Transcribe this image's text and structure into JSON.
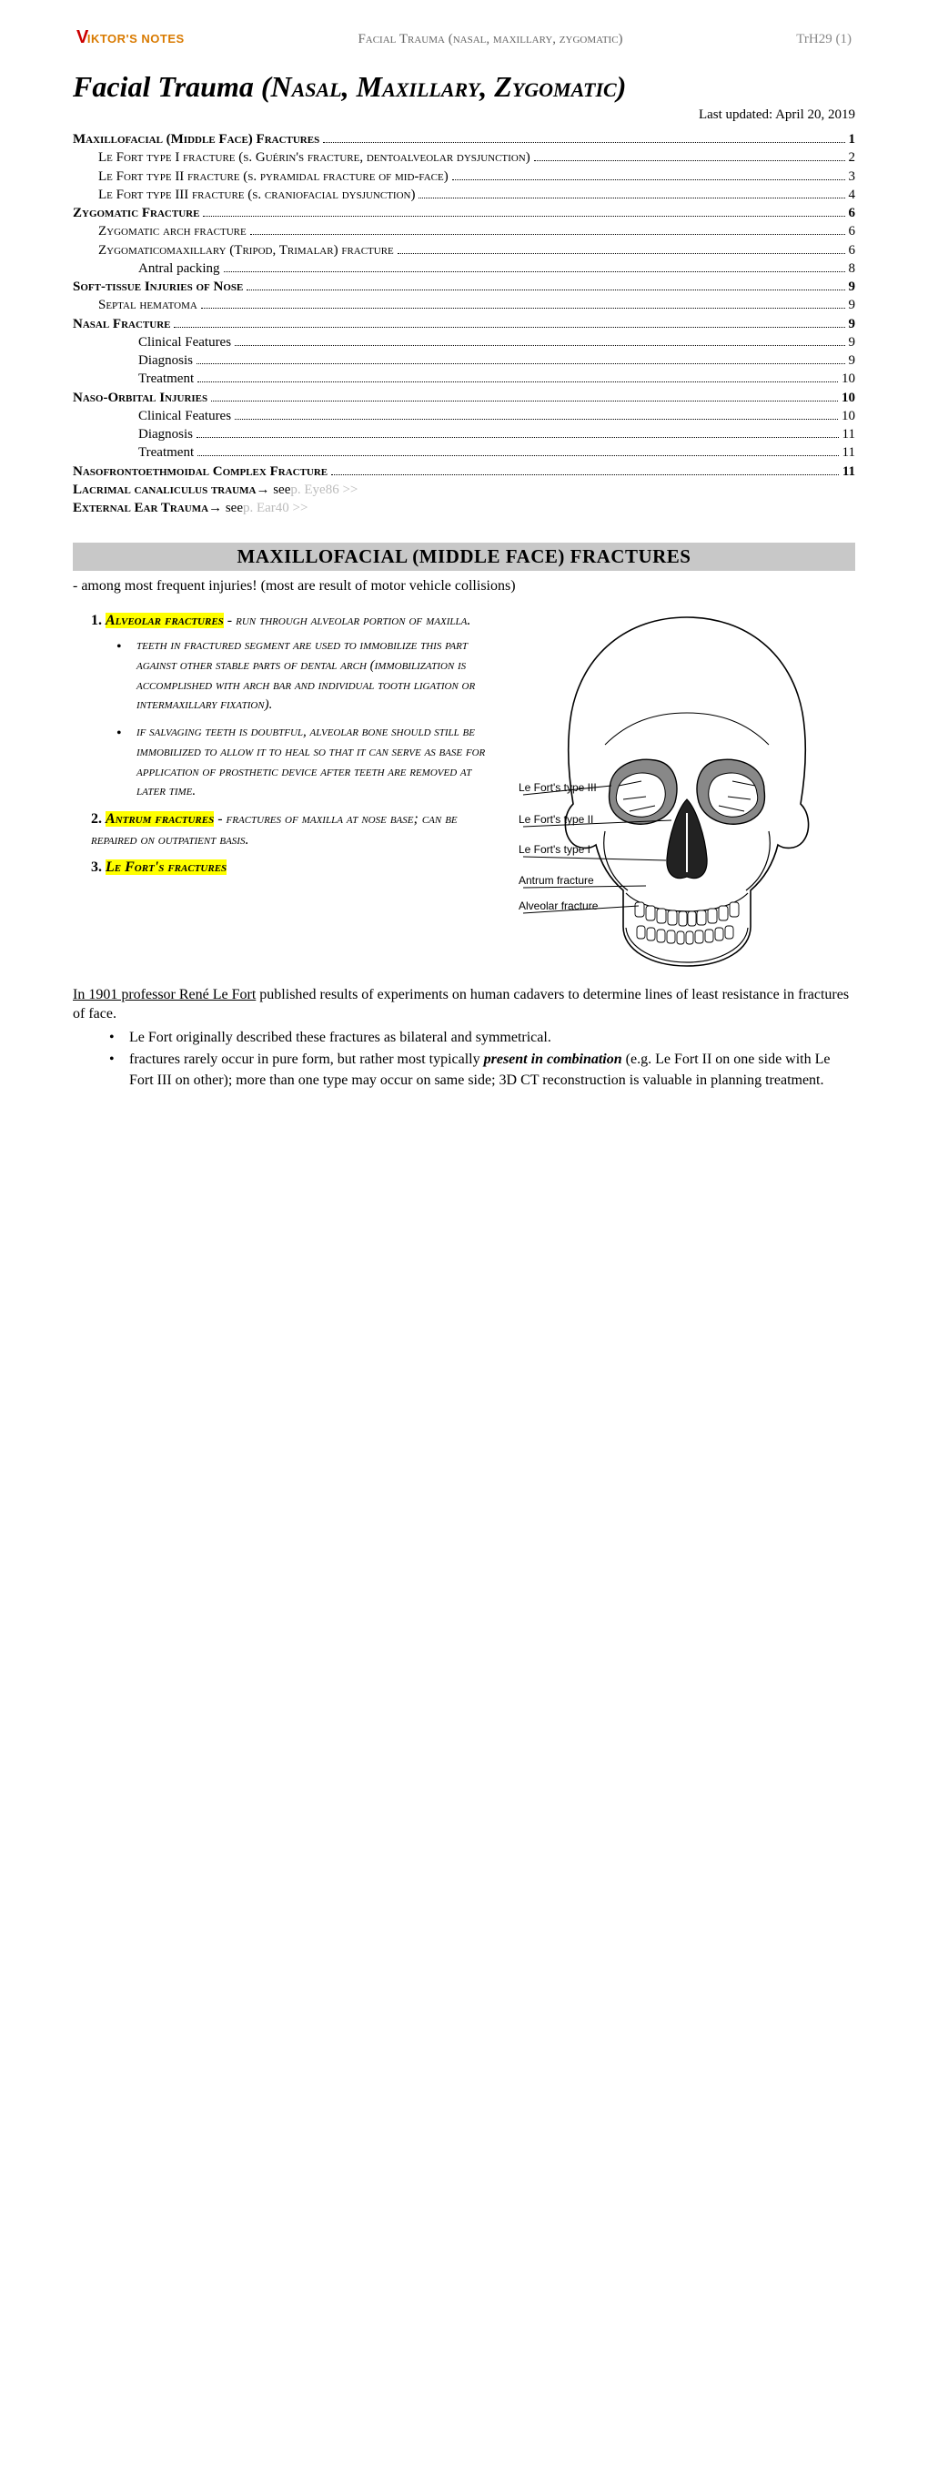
{
  "header": {
    "logo_text": "IKTOR'S NOTES",
    "center": "Facial Trauma (nasal, maxillary, zygomatic)",
    "right": "TrH29 (1)"
  },
  "title": {
    "lead": "Facial Trauma (",
    "parts": [
      "Nasal",
      "Maxillary",
      "Zygomatic"
    ],
    "tail": ")"
  },
  "updated": "Last updated: April 20, 2019",
  "toc": [
    {
      "level": 0,
      "label": "Maxillofacial (Middle Face) Fractures",
      "page": "1"
    },
    {
      "level": 1,
      "label": "Le Fort type I fracture (s. Guérin's fracture, dentoalveolar dysjunction)",
      "page": "2"
    },
    {
      "level": 1,
      "label": "Le Fort type II fracture (s. pyramidal fracture of mid-face)",
      "page": "3"
    },
    {
      "level": 1,
      "label": "Le Fort type III fracture (s. craniofacial dysjunction)",
      "page": "4"
    },
    {
      "level": 0,
      "label": "Zygomatic Fracture",
      "page": "6"
    },
    {
      "level": 1,
      "label": "Zygomatic arch fracture",
      "page": "6"
    },
    {
      "level": 1,
      "label": "Zygomaticomaxillary (Tripod, Trimalar) fracture",
      "page": "6"
    },
    {
      "level": 2,
      "label": "Antral packing",
      "page": "8"
    },
    {
      "level": 0,
      "label": "Soft-tissue Injuries of Nose",
      "page": "9"
    },
    {
      "level": 1,
      "label": "Septal hematoma",
      "page": "9"
    },
    {
      "level": 0,
      "label": "Nasal Fracture",
      "page": "9"
    },
    {
      "level": 2,
      "label": "Clinical Features",
      "page": "9"
    },
    {
      "level": 2,
      "label": "Diagnosis",
      "page": "9"
    },
    {
      "level": 2,
      "label": "Treatment",
      "page": "10"
    },
    {
      "level": 0,
      "label": "Naso-Orbital Injuries",
      "page": "10"
    },
    {
      "level": 2,
      "label": "Clinical Features",
      "page": "10"
    },
    {
      "level": 2,
      "label": "Diagnosis",
      "page": "11"
    },
    {
      "level": 2,
      "label": "Treatment",
      "page": "11"
    },
    {
      "level": 0,
      "label": "Nasofrontoethmoidal Complex Fracture",
      "page": "11"
    }
  ],
  "toc_refs": [
    {
      "label": "Lacrimal canaliculus trauma",
      "arrow": " → see ",
      "link": "p. Eye86 >>"
    },
    {
      "label": "External Ear Trauma",
      "arrow": " → see ",
      "link": "p. Ear40 >>"
    }
  ],
  "section1": {
    "heading": "MAXILLOFACIAL (MIDDLE FACE) FRACTURES",
    "intro": "- among most frequent injuries! (most are result of motor vehicle collisions)",
    "items": [
      {
        "num": "1.",
        "hl": "Alveolar fractures",
        "rest": " - run through alveolar portion of maxilla.",
        "bullets": [
          "teeth in fractured segment are used to immobilize this part against other stable parts of dental arch (immobilization is accomplished with arch bar and individual tooth ligation or intermaxillary fixation).",
          "if salvaging teeth is doubtful, alveolar bone should still be immobilized to allow it to heal so that it can serve as base for application of prosthetic device after teeth are removed at later time."
        ]
      },
      {
        "num": "2.",
        "hl": "Antrum fractures",
        "rest": " - fractures of maxilla at nose base; can be repaired on outpatient basis."
      },
      {
        "num": "3.",
        "hl": "Le Fort's fractures",
        "rest": ""
      }
    ],
    "para_lead": "In 1901 professor René Le Fort",
    "para_rest": " published results of experiments on human cadavers to determine lines of least resistance in fractures of face.",
    "bullets2": [
      "Le Fort originally described these fractures as bilateral and symmetrical.",
      "fractures rarely occur in pure form, but rather most typically present in combination (e.g. Le Fort II on one side with Le Fort III on other); more than one type may occur on same side; 3D CT reconstruction is valuable in planning treatment."
    ],
    "bullet2_emph": "present in combination"
  },
  "skull_labels": {
    "l3": "Le Fort's type III",
    "l2": "Le Fort's type II",
    "l1": "Le Fort's type I",
    "antrum": "Antrum fracture",
    "alveolar": "Alveolar fracture"
  }
}
